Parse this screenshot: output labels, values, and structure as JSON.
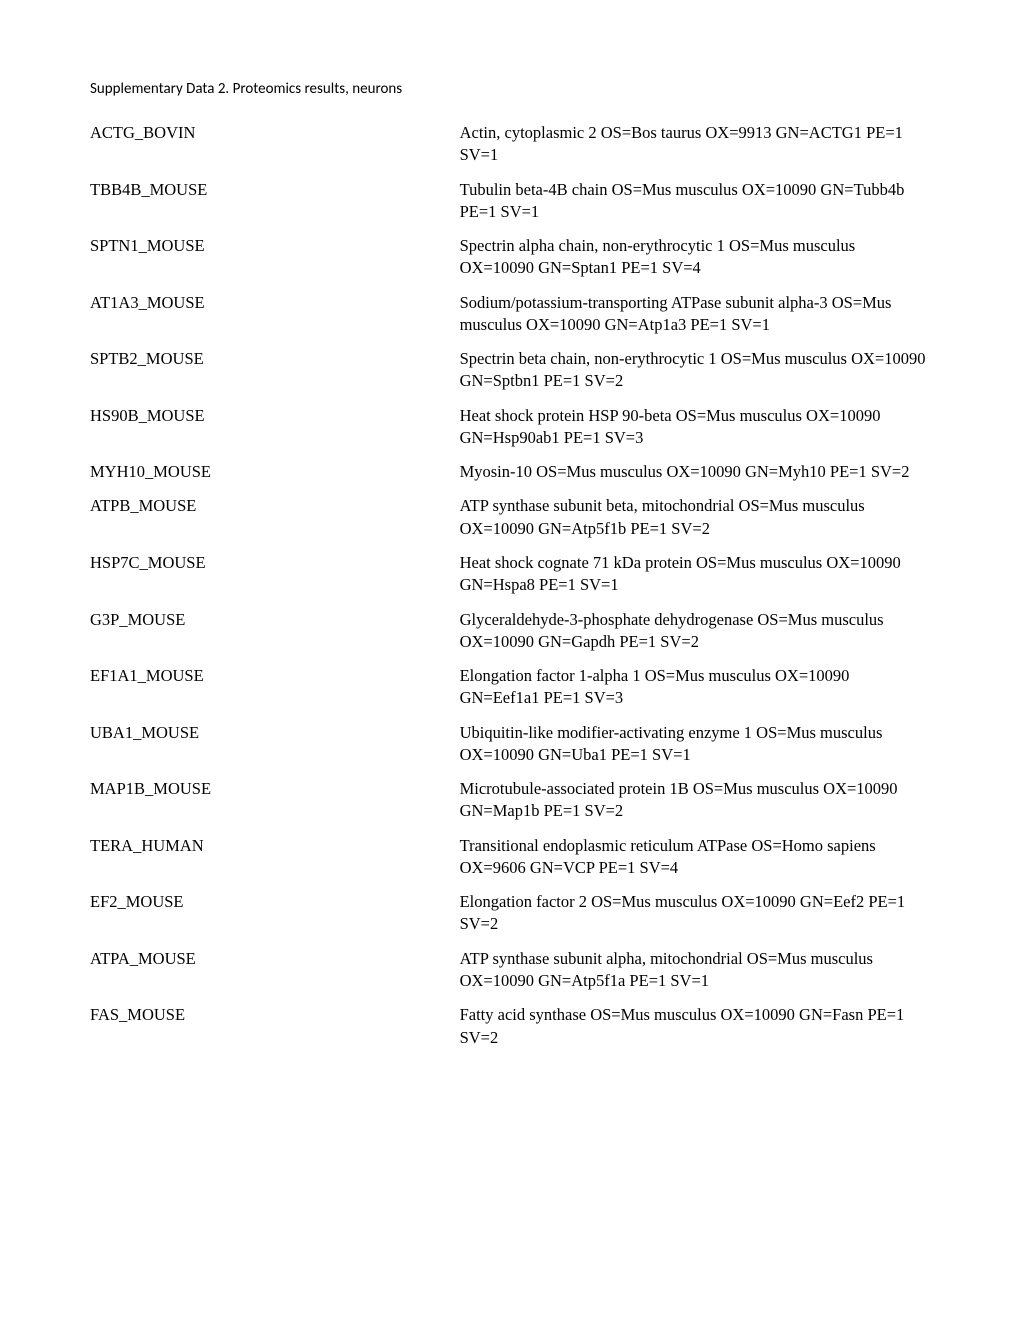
{
  "title": "Supplementary Data 2. Proteomics results, neurons",
  "rows": [
    {
      "id": "ACTG_BOVIN",
      "desc": "Actin, cytoplasmic 2 OS=Bos taurus OX=9913 GN=ACTG1 PE=1 SV=1"
    },
    {
      "id": "TBB4B_MOUSE",
      "desc": "Tubulin beta-4B chain OS=Mus musculus OX=10090 GN=Tubb4b PE=1 SV=1"
    },
    {
      "id": "SPTN1_MOUSE",
      "desc": "Spectrin alpha chain, non-erythrocytic 1 OS=Mus musculus OX=10090 GN=Sptan1 PE=1 SV=4"
    },
    {
      "id": "AT1A3_MOUSE",
      "desc": "Sodium/potassium-transporting ATPase subunit alpha-3 OS=Mus musculus OX=10090 GN=Atp1a3 PE=1 SV=1"
    },
    {
      "id": "SPTB2_MOUSE",
      "desc": "Spectrin beta chain, non-erythrocytic 1 OS=Mus musculus OX=10090 GN=Sptbn1 PE=1 SV=2"
    },
    {
      "id": "HS90B_MOUSE",
      "desc": "Heat shock protein HSP 90-beta OS=Mus musculus OX=10090 GN=Hsp90ab1 PE=1 SV=3"
    },
    {
      "id": "MYH10_MOUSE",
      "desc": "Myosin-10 OS=Mus musculus OX=10090 GN=Myh10 PE=1 SV=2"
    },
    {
      "id": "ATPB_MOUSE",
      "desc": "ATP synthase subunit beta, mitochondrial OS=Mus musculus OX=10090 GN=Atp5f1b PE=1 SV=2"
    },
    {
      "id": "HSP7C_MOUSE",
      "desc": "Heat shock cognate 71 kDa protein OS=Mus musculus OX=10090 GN=Hspa8 PE=1 SV=1"
    },
    {
      "id": "G3P_MOUSE",
      "desc": "Glyceraldehyde-3-phosphate dehydrogenase OS=Mus musculus OX=10090 GN=Gapdh PE=1 SV=2"
    },
    {
      "id": "EF1A1_MOUSE",
      "desc": "Elongation factor 1-alpha 1 OS=Mus musculus OX=10090 GN=Eef1a1 PE=1 SV=3"
    },
    {
      "id": "UBA1_MOUSE",
      "desc": "Ubiquitin-like modifier-activating enzyme 1 OS=Mus musculus OX=10090 GN=Uba1 PE=1 SV=1"
    },
    {
      "id": "MAP1B_MOUSE",
      "desc": "Microtubule-associated protein 1B OS=Mus musculus OX=10090 GN=Map1b PE=1 SV=2"
    },
    {
      "id": "TERA_HUMAN",
      "desc": "Transitional endoplasmic reticulum ATPase OS=Homo sapiens OX=9606 GN=VCP PE=1 SV=4"
    },
    {
      "id": "EF2_MOUSE",
      "desc": "Elongation factor 2 OS=Mus musculus OX=10090 GN=Eef2 PE=1 SV=2"
    },
    {
      "id": "ATPA_MOUSE",
      "desc": "ATP synthase subunit alpha, mitochondrial OS=Mus musculus OX=10090 GN=Atp5f1a PE=1 SV=1"
    },
    {
      "id": "FAS_MOUSE",
      "desc": "Fatty acid synthase OS=Mus musculus OX=10090 GN=Fasn PE=1 SV=2"
    }
  ]
}
